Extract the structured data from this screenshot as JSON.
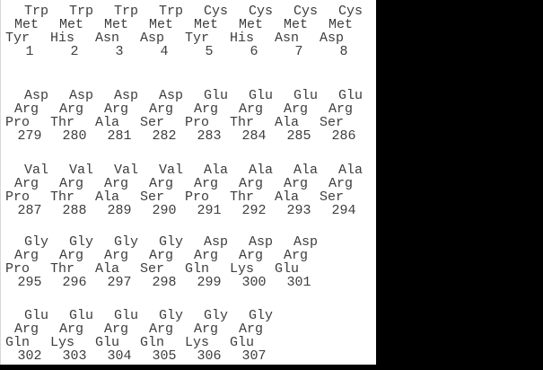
{
  "view": {
    "background_color": "#000000",
    "panel_color": "#ffffff",
    "text_color": "#3d3d3d"
  },
  "sequence_blocks": [
    {
      "residue_rows": [
        [
          "Trp",
          "Trp",
          "Trp",
          "Trp",
          "Cys",
          "Cys",
          "Cys",
          "Cys"
        ],
        [
          "Met",
          "Met",
          "Met",
          "Met",
          "Met",
          "Met",
          "Met",
          "Met"
        ],
        [
          "Tyr",
          "His",
          "Asn",
          "Asp",
          "Tyr",
          "His",
          "Asn",
          "Asp"
        ]
      ],
      "positions": [
        "1",
        "2",
        "3",
        "4",
        "5",
        "6",
        "7",
        "8"
      ]
    },
    {
      "residue_rows": [
        [
          "Asp",
          "Asp",
          "Asp",
          "Asp",
          "Glu",
          "Glu",
          "Glu",
          "Glu"
        ],
        [
          "Arg",
          "Arg",
          "Arg",
          "Arg",
          "Arg",
          "Arg",
          "Arg",
          "Arg"
        ],
        [
          "Pro",
          "Thr",
          "Ala",
          "Ser",
          "Pro",
          "Thr",
          "Ala",
          "Ser"
        ]
      ],
      "positions": [
        "279",
        "280",
        "281",
        "282",
        "283",
        "284",
        "285",
        "286"
      ]
    },
    {
      "residue_rows": [
        [
          "Val",
          "Val",
          "Val",
          "Val",
          "Ala",
          "Ala",
          "Ala",
          "Ala"
        ],
        [
          "Arg",
          "Arg",
          "Arg",
          "Arg",
          "Arg",
          "Arg",
          "Arg",
          "Arg"
        ],
        [
          "Pro",
          "Thr",
          "Ala",
          "Ser",
          "Pro",
          "Thr",
          "Ala",
          "Ser"
        ]
      ],
      "positions": [
        "287",
        "288",
        "289",
        "290",
        "291",
        "292",
        "293",
        "294"
      ]
    },
    {
      "residue_rows": [
        [
          "Gly",
          "Gly",
          "Gly",
          "Gly",
          "Asp",
          "Asp",
          "Asp"
        ],
        [
          "Arg",
          "Arg",
          "Arg",
          "Arg",
          "Arg",
          "Arg",
          "Arg"
        ],
        [
          "Pro",
          "Thr",
          "Ala",
          "Ser",
          "Gln",
          "Lys",
          "Glu"
        ]
      ],
      "positions": [
        "295",
        "296",
        "297",
        "298",
        "299",
        "300",
        "301"
      ]
    },
    {
      "residue_rows": [
        [
          "Glu",
          "Glu",
          "Glu",
          "Gly",
          "Gly",
          "Gly"
        ],
        [
          "Arg",
          "Arg",
          "Arg",
          "Arg",
          "Arg",
          "Arg"
        ],
        [
          "Gln",
          "Lys",
          "Glu",
          "Gln",
          "Lys",
          "Glu"
        ]
      ],
      "positions": [
        "302",
        "303",
        "304",
        "305",
        "306",
        "307"
      ]
    }
  ]
}
